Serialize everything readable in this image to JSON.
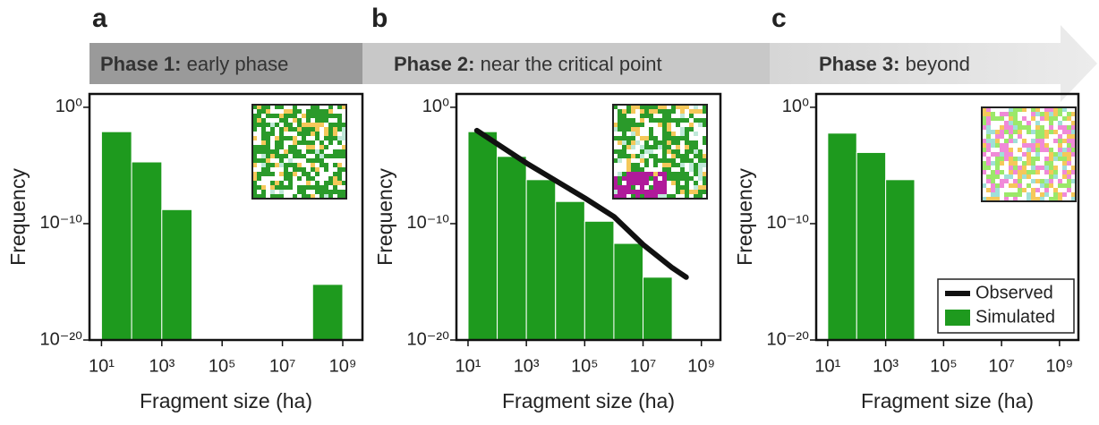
{
  "chart_data": [
    {
      "type": "histogram",
      "panel_label": "a",
      "phase_title": "Phase 1:",
      "phase_subtitle": "early phase",
      "xlabel": "Fragment size (ha)",
      "ylabel": "Frequency",
      "log_x": true,
      "log_y": true,
      "color": "#1e9a1e",
      "bins": [
        10,
        100,
        1000,
        10000,
        100000,
        1000000,
        10000000,
        100000000,
        1000000000
      ],
      "values": [
        0.008,
        2e-05,
        1.6e-09,
        null,
        null,
        null,
        null,
        6e-16
      ],
      "xlim": [
        4,
        4500000000
      ],
      "ylim": [
        1e-20,
        14
      ],
      "xticks": [
        {
          "value": 10,
          "label": "10¹"
        },
        {
          "value": 1000,
          "label": "10³"
        },
        {
          "value": 100000,
          "label": "10⁵"
        },
        {
          "value": 10000000,
          "label": "10⁷"
        },
        {
          "value": 1000000000,
          "label": "10⁹"
        }
      ],
      "yticks": [
        {
          "value": 1,
          "label": "10⁰"
        },
        {
          "value": 1e-10,
          "label": "10⁻¹⁰"
        },
        {
          "value": 1e-20,
          "label": "10⁻²⁰"
        }
      ]
    },
    {
      "type": "histogram",
      "panel_label": "b",
      "phase_title": "Phase 2:",
      "phase_subtitle": "near the critical point",
      "xlabel": "Fragment size (ha)",
      "ylabel": "Frequency",
      "log_x": true,
      "log_y": true,
      "color": "#1e9a1e",
      "bins": [
        10,
        100,
        1000,
        10000,
        100000,
        1000000,
        10000000,
        100000000
      ],
      "values": [
        0.008,
        6e-05,
        6e-07,
        8e-09,
        1.6e-10,
        2e-12,
        2.5e-15
      ],
      "overlay": {
        "type": "line",
        "color": "#111111",
        "x": [
          20,
          1000,
          100000,
          1000000,
          10000000,
          100000000,
          300000000
        ],
        "values": [
          0.01,
          1.6e-05,
          1.6e-08,
          4e-10,
          1.6e-12,
          1.6e-14,
          2.5e-15
        ]
      },
      "xlim": [
        4,
        4500000000
      ],
      "ylim": [
        1e-20,
        14
      ],
      "xticks": [
        {
          "value": 10,
          "label": "10¹"
        },
        {
          "value": 1000,
          "label": "10³"
        },
        {
          "value": 100000,
          "label": "10⁵"
        },
        {
          "value": 10000000,
          "label": "10⁷"
        },
        {
          "value": 1000000000,
          "label": "10⁹"
        }
      ],
      "yticks": [
        {
          "value": 1,
          "label": "10⁰"
        },
        {
          "value": 1e-10,
          "label": "10⁻¹⁰"
        },
        {
          "value": 1e-20,
          "label": "10⁻²⁰"
        }
      ]
    },
    {
      "type": "histogram",
      "panel_label": "c",
      "phase_title": "Phase 3:",
      "phase_subtitle": "beyond",
      "xlabel": "Fragment size (ha)",
      "ylabel": "Frequency",
      "log_x": true,
      "log_y": true,
      "color": "#1e9a1e",
      "bins": [
        10,
        100,
        1000,
        10000
      ],
      "values": [
        0.006,
        0.00013,
        6e-07
      ],
      "legend": {
        "position": "lower right",
        "entries": [
          {
            "name": "Observed",
            "color": "#111111"
          },
          {
            "name": "Simulated",
            "color": "#1e9a1e"
          }
        ]
      },
      "xlim": [
        4,
        4500000000
      ],
      "ylim": [
        1e-20,
        14
      ],
      "xticks": [
        {
          "value": 10,
          "label": "10¹"
        },
        {
          "value": 1000,
          "label": "10³"
        },
        {
          "value": 100000,
          "label": "10⁵"
        },
        {
          "value": 10000000,
          "label": "10⁷"
        },
        {
          "value": 1000000000,
          "label": "10⁹"
        }
      ],
      "yticks": [
        {
          "value": 1,
          "label": "10⁰"
        },
        {
          "value": 1e-10,
          "label": "10⁻¹⁰"
        },
        {
          "value": 1e-20,
          "label": "10⁻²⁰"
        }
      ]
    }
  ]
}
